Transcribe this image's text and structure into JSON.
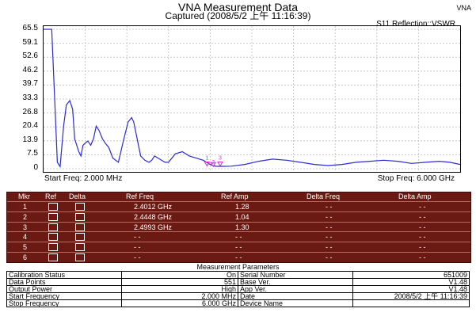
{
  "header": {
    "title": "VNA Measurement Data",
    "subtitle": "Captured  (2008/5/2 上午 11:16:39)",
    "vna_tag": "VNA",
    "measurement": "S11 Reflection::VSWR"
  },
  "chart_data": {
    "type": "line",
    "title": "",
    "x_start_label": "Start Freq: 2.000 MHz",
    "x_stop_label": "Stop Freq: 6.000 GHz",
    "y_ticks": [
      "65.5",
      "59.1",
      "52.6",
      "46.2",
      "39.7",
      "33.3",
      "26.8",
      "20.4",
      "13.9",
      "7.5",
      "0"
    ],
    "ylim": [
      0,
      65.5
    ],
    "xlim_mhz": [
      2,
      6000
    ],
    "grid": true,
    "color": "#2b2bd1",
    "series": [
      {
        "x": [
          2,
          120,
          200,
          240,
          290,
          330,
          380,
          420,
          450,
          510,
          540,
          570,
          600,
          640,
          680,
          720,
          760,
          800,
          850,
          890,
          940,
          1000,
          1080,
          1150,
          1220,
          1270,
          1300,
          1350,
          1400,
          1460,
          1520,
          1560,
          1600,
          1650,
          1700,
          1750,
          1800,
          1900,
          2000,
          2100,
          2200,
          2300,
          2400,
          2450,
          2500,
          2600,
          2700,
          2900,
          3100,
          3300,
          3500,
          3700,
          3900,
          4100,
          4300,
          4500,
          4700,
          4900,
          5100,
          5300,
          5500,
          5700,
          5850,
          6000
        ],
        "y": [
          65.5,
          65.5,
          3,
          1,
          20,
          30,
          32,
          28,
          14,
          8,
          6,
          11,
          12,
          13,
          11,
          14,
          20,
          18,
          14,
          12,
          10,
          5,
          3,
          13,
          22,
          24,
          22,
          14,
          6,
          4,
          3,
          4,
          6,
          5,
          4,
          3,
          3,
          7,
          8,
          6,
          5,
          4,
          2,
          1.3,
          1.1,
          1.1,
          1.2,
          2,
          3.5,
          4.5,
          4,
          3,
          2,
          1.5,
          2,
          3,
          3.5,
          4,
          3.5,
          2.5,
          3,
          3.5,
          3,
          2
        ]
      }
    ],
    "markers": [
      {
        "label": "1",
        "freq_ghz": 2.4012,
        "value": 1.28
      },
      {
        "label": "2",
        "freq_ghz": 2.4448,
        "value": 1.04
      },
      {
        "label": "3",
        "freq_ghz": 2.4993,
        "value": 1.3
      }
    ]
  },
  "marker_table": {
    "headers": [
      "Mkr",
      "Ref",
      "Delta",
      "Ref Freq",
      "Ref Amp",
      "Delta Freq",
      "Delta Amp"
    ],
    "rows": [
      {
        "mkr": "1",
        "ref_freq": "2.4012 GHz",
        "ref_amp": "1.28",
        "delta_freq": "- -",
        "delta_amp": "- -"
      },
      {
        "mkr": "2",
        "ref_freq": "2.4448 GHz",
        "ref_amp": "1.04",
        "delta_freq": "- -",
        "delta_amp": "- -"
      },
      {
        "mkr": "3",
        "ref_freq": "2.4993 GHz",
        "ref_amp": "1.30",
        "delta_freq": "- -",
        "delta_amp": "- -"
      },
      {
        "mkr": "4",
        "ref_freq": "- -",
        "ref_amp": "- -",
        "delta_freq": "- -",
        "delta_amp": "- -"
      },
      {
        "mkr": "5",
        "ref_freq": "- -",
        "ref_amp": "- -",
        "delta_freq": "- -",
        "delta_amp": "- -"
      },
      {
        "mkr": "6",
        "ref_freq": "- -",
        "ref_amp": "- -",
        "delta_freq": "- -",
        "delta_amp": "- -"
      }
    ]
  },
  "params": {
    "title": "Measurement Parameters",
    "rows": [
      {
        "l1": "Calibration Status",
        "v1": "On",
        "l2": "Serial Number",
        "v2": "651009"
      },
      {
        "l1": "Data Points",
        "v1": "551",
        "l2": "Base Ver.",
        "v2": "V1.48"
      },
      {
        "l1": "Output Power",
        "v1": "High",
        "l2": "App Ver.",
        "v2": "V1.48"
      },
      {
        "l1": "Start Frequency",
        "v1": "2.000 MHz",
        "l2": "Date",
        "v2": "2008/5/2 上午 11:16:39"
      },
      {
        "l1": "Stop Frequency",
        "v1": "6.000 GHz",
        "l2": "Device Name",
        "v2": ""
      }
    ]
  },
  "colors": {
    "table_bg": "#6b1a13",
    "trace": "#2b2bd1",
    "marker": "#cc33cc"
  }
}
